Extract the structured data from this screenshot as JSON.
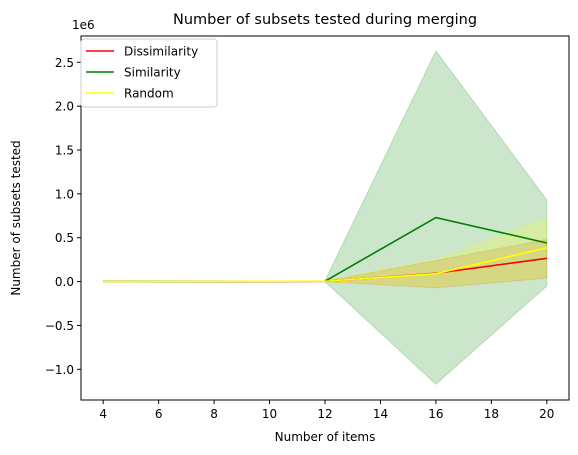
{
  "chart_data": {
    "type": "line",
    "title": "Number of subsets tested during merging",
    "xlabel": "Number of items",
    "ylabel": "Number of subsets tested",
    "y_offset_label": "1e6",
    "xlim": [
      3.2,
      20.8
    ],
    "ylim": [
      -1.35,
      2.8
    ],
    "xticks": [
      4,
      6,
      8,
      10,
      12,
      14,
      16,
      18,
      20
    ],
    "yticks": [
      -1.0,
      -0.5,
      0.0,
      0.5,
      1.0,
      1.5,
      2.0,
      2.5
    ],
    "ytick_labels": [
      "−1.0",
      "−0.5",
      "0.0",
      "0.5",
      "1.0",
      "1.5",
      "2.0",
      "2.5"
    ],
    "y_unit_multiplier": 1000000,
    "x": [
      4,
      12,
      16,
      20
    ],
    "grid": false,
    "legend_position": "upper-left",
    "series": [
      {
        "name": "Dissimilarity",
        "color": "#ff0000",
        "band_color": "#ff6600",
        "values": [
          0.0,
          0.003,
          0.095,
          0.265
        ],
        "band_low": [
          0.0,
          0.0,
          -0.07,
          0.04
        ],
        "band_high": [
          0.0,
          0.006,
          0.24,
          0.48
        ]
      },
      {
        "name": "Similarity",
        "color": "#008000",
        "band_color": "#008000",
        "values": [
          0.0,
          0.005,
          0.73,
          0.44
        ],
        "band_low": [
          0.0,
          0.0,
          -1.17,
          -0.05
        ],
        "band_high": [
          0.0,
          0.01,
          2.63,
          0.93
        ]
      },
      {
        "name": "Random",
        "color": "#ffff00",
        "band_color": "#ffff00",
        "values": [
          0.0,
          0.004,
          0.09,
          0.385
        ],
        "band_low": [
          0.0,
          0.0,
          -0.06,
          0.05
        ],
        "band_high": [
          0.0,
          0.008,
          0.25,
          0.72
        ]
      }
    ]
  }
}
